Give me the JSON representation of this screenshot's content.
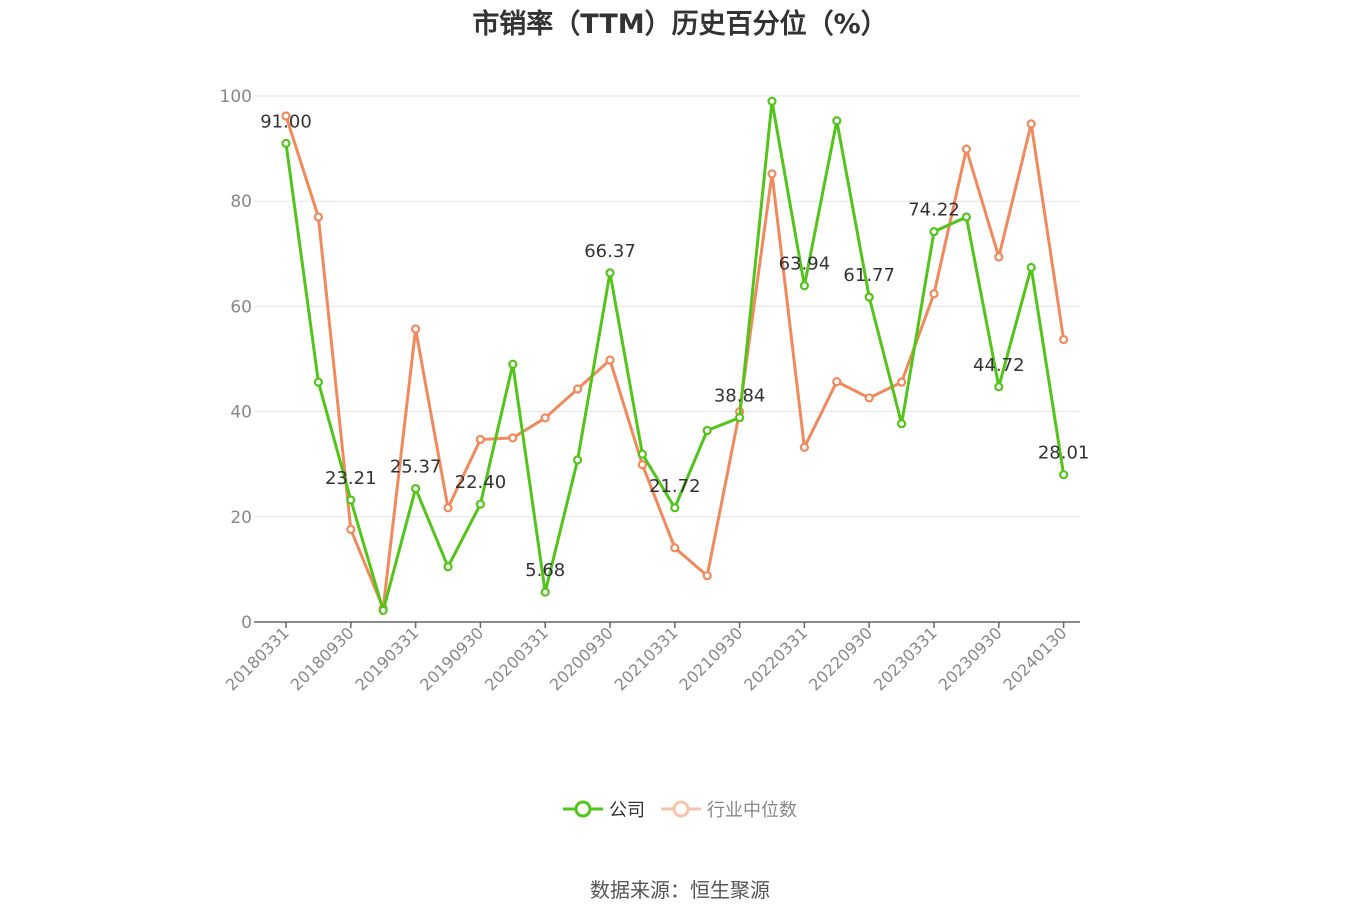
{
  "title": "市销率（TTM）历史百分位（%）",
  "source": "数据来源：恒生聚源",
  "legend": [
    {
      "label": "公司",
      "color": "#52c41a",
      "icon": "circle-line-icon"
    },
    {
      "label": "行业中位数",
      "color": "#f5a07a",
      "icon": "circle-line-icon"
    }
  ],
  "chart_data": {
    "type": "line",
    "title": "市销率（TTM）历史百分位（%）",
    "ylim": [
      0,
      100
    ],
    "yticks": [
      0,
      20,
      40,
      60,
      80,
      100
    ],
    "grid": true,
    "legend_position": "bottom",
    "x": [
      "20180331",
      "20180630",
      "20180930",
      "20181231",
      "20190331",
      "20190630",
      "20190930",
      "20191231",
      "20200331",
      "20200630",
      "20200930",
      "20201231",
      "20210331",
      "20210630",
      "20210930",
      "20211231",
      "20220331",
      "20220630",
      "20220930",
      "20221231",
      "20230331",
      "20230630",
      "20230930",
      "20231231",
      "20240130"
    ],
    "xtick_labels": [
      "20180331",
      "20180930",
      "20190331",
      "20190930",
      "20200331",
      "20200930",
      "20210331",
      "20210930",
      "20220331",
      "20220930",
      "20230331",
      "20230930",
      "20240130"
    ],
    "series": [
      {
        "name": "公司",
        "color": "#52c41a",
        "values": [
          91.0,
          45.6,
          23.21,
          2.2,
          25.37,
          10.5,
          22.4,
          49.0,
          5.68,
          30.8,
          66.37,
          31.9,
          21.72,
          36.4,
          38.84,
          99.0,
          63.94,
          95.3,
          61.77,
          37.7,
          74.22,
          77.0,
          44.72,
          67.4,
          28.01
        ],
        "labels": [
          "91.00",
          null,
          "23.21",
          null,
          "25.37",
          null,
          "22.40",
          null,
          "5.68",
          null,
          "66.37",
          null,
          "21.72",
          null,
          "38.84",
          null,
          "63.94",
          null,
          "61.77",
          null,
          "74.22",
          null,
          "44.72",
          null,
          "28.01"
        ]
      },
      {
        "name": "行业中位数",
        "color": "#f08a5d",
        "values": [
          96.2,
          77.0,
          17.6,
          2.6,
          55.7,
          21.7,
          34.7,
          35.0,
          38.8,
          44.3,
          49.8,
          29.9,
          14.1,
          8.8,
          40.0,
          85.2,
          33.2,
          45.7,
          42.6,
          45.6,
          62.4,
          89.9,
          69.4,
          94.7,
          53.7
        ]
      }
    ]
  }
}
